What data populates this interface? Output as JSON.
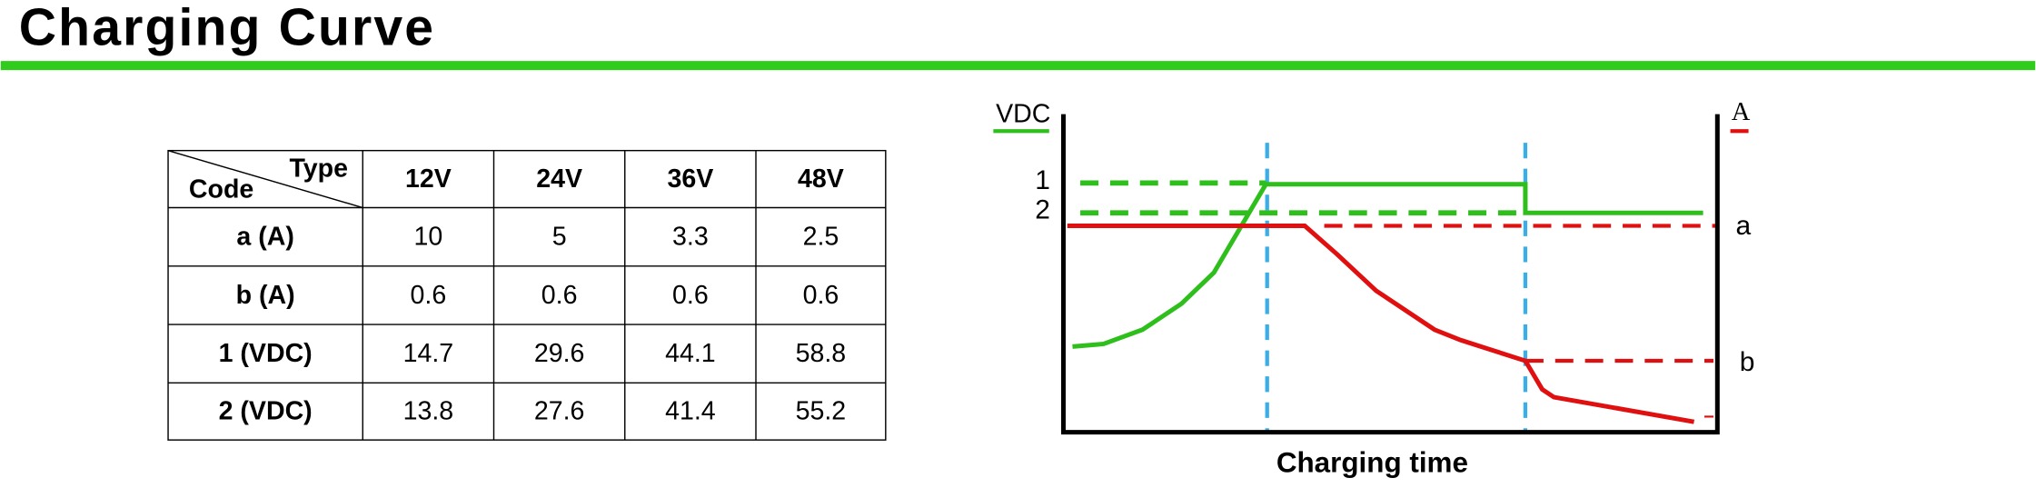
{
  "header": {
    "title": "Charging Curve"
  },
  "table": {
    "corner": {
      "top": "Type",
      "bottom": "Code"
    },
    "columns": [
      "12V",
      "24V",
      "36V",
      "48V"
    ],
    "rows": [
      [
        "a (A)",
        "10",
        "5",
        "3.3",
        "2.5"
      ],
      [
        "b (A)",
        "0.6",
        "0.6",
        "0.6",
        "0.6"
      ],
      [
        "1 (VDC)",
        "14.7",
        "29.6",
        "44.1",
        "58.8"
      ],
      [
        "2 (VDC)",
        "13.8",
        "27.6",
        "41.4",
        "55.2"
      ]
    ]
  },
  "diagram": {
    "left_axis": "VDC",
    "right_axis": "A",
    "level_1": "1",
    "level_2": "2",
    "current_a": "a",
    "current_b": "b",
    "x_axis": "Charging time"
  }
}
